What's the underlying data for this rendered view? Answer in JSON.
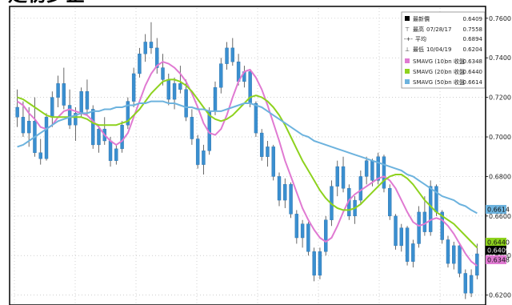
{
  "title": "走初步企",
  "chart_data": {
    "type": "line",
    "title": "走初步企",
    "xlabel": "",
    "ylabel": "",
    "ylim": [
      0.615,
      0.766
    ],
    "yticks": [
      0.62,
      0.64,
      0.66,
      0.68,
      0.7,
      0.72,
      0.74,
      0.76
    ],
    "ytick_labels": [
      "0.6200",
      "0.6400",
      "0.6600",
      "0.6800",
      "0.7000",
      "0.7200",
      "0.7400",
      "0.7600"
    ],
    "grid": true,
    "legend_position": "top-right",
    "legend": {
      "header": [
        {
          "icon": "black-square",
          "label": "最新價",
          "date": "",
          "value": "0.6409"
        },
        {
          "icon": "high-marker",
          "label": "最高",
          "date": "07/28/17",
          "value": "0.7558"
        },
        {
          "icon": "avg-marker",
          "label": "平均",
          "date": "",
          "value": "0.6894"
        },
        {
          "icon": "low-marker",
          "label": "最低",
          "date": "10/04/19",
          "value": "0.6204"
        }
      ],
      "series": [
        {
          "label": "SMAVG (10)",
          "basis": "on 收盤",
          "value": "0.6348",
          "color": "#e07ad2"
        },
        {
          "label": "SMAVG (20)",
          "basis": "on 收盤",
          "value": "0.6440",
          "color": "#8ed21e"
        },
        {
          "label": "SMAVG (50)",
          "basis": "on 收盤",
          "value": "0.6614",
          "color": "#6db3de"
        }
      ]
    },
    "price_badges": [
      {
        "value": "0.6614",
        "color": "#6db3de"
      },
      {
        "value": "0.6440",
        "color": "#8ed21e"
      },
      {
        "value": "0.6409",
        "color": "#000000"
      },
      {
        "value": "0.6348",
        "color": "#e07ad2"
      }
    ],
    "candle_color": "#3a8fd0",
    "candles": [
      [
        0.715,
        0.724,
        0.705,
        0.71
      ],
      [
        0.71,
        0.718,
        0.7,
        0.702
      ],
      [
        0.702,
        0.715,
        0.695,
        0.708
      ],
      [
        0.708,
        0.72,
        0.69,
        0.692
      ],
      [
        0.692,
        0.699,
        0.686,
        0.689
      ],
      [
        0.689,
        0.712,
        0.688,
        0.71
      ],
      [
        0.71,
        0.723,
        0.705,
        0.72
      ],
      [
        0.72,
        0.731,
        0.715,
        0.727
      ],
      [
        0.727,
        0.735,
        0.714,
        0.716
      ],
      [
        0.716,
        0.724,
        0.704,
        0.706
      ],
      [
        0.706,
        0.715,
        0.698,
        0.712
      ],
      [
        0.712,
        0.725,
        0.71,
        0.723
      ],
      [
        0.723,
        0.729,
        0.711,
        0.714
      ],
      [
        0.714,
        0.716,
        0.694,
        0.696
      ],
      [
        0.696,
        0.706,
        0.692,
        0.704
      ],
      [
        0.704,
        0.71,
        0.696,
        0.698
      ],
      [
        0.698,
        0.7,
        0.685,
        0.688
      ],
      [
        0.688,
        0.696,
        0.686,
        0.694
      ],
      [
        0.694,
        0.708,
        0.692,
        0.706
      ],
      [
        0.706,
        0.72,
        0.704,
        0.718
      ],
      [
        0.718,
        0.735,
        0.715,
        0.732
      ],
      [
        0.732,
        0.745,
        0.73,
        0.742
      ],
      [
        0.742,
        0.752,
        0.738,
        0.748
      ],
      [
        0.748,
        0.758,
        0.742,
        0.745
      ],
      [
        0.745,
        0.75,
        0.732,
        0.735
      ],
      [
        0.735,
        0.742,
        0.726,
        0.729
      ],
      [
        0.729,
        0.732,
        0.716,
        0.719
      ],
      [
        0.719,
        0.73,
        0.714,
        0.727
      ],
      [
        0.727,
        0.736,
        0.722,
        0.724
      ],
      [
        0.724,
        0.729,
        0.708,
        0.71
      ],
      [
        0.71,
        0.714,
        0.696,
        0.699
      ],
      [
        0.699,
        0.701,
        0.684,
        0.686
      ],
      [
        0.686,
        0.696,
        0.681,
        0.693
      ],
      [
        0.693,
        0.715,
        0.691,
        0.713
      ],
      [
        0.713,
        0.728,
        0.711,
        0.725
      ],
      [
        0.725,
        0.74,
        0.722,
        0.737
      ],
      [
        0.737,
        0.748,
        0.734,
        0.745
      ],
      [
        0.745,
        0.75,
        0.736,
        0.738
      ],
      [
        0.738,
        0.742,
        0.726,
        0.728
      ],
      [
        0.728,
        0.736,
        0.725,
        0.733
      ],
      [
        0.733,
        0.734,
        0.715,
        0.717
      ],
      [
        0.717,
        0.718,
        0.7,
        0.702
      ],
      [
        0.702,
        0.704,
        0.688,
        0.69
      ],
      [
        0.69,
        0.698,
        0.685,
        0.695
      ],
      [
        0.695,
        0.696,
        0.678,
        0.68
      ],
      [
        0.68,
        0.682,
        0.665,
        0.668
      ],
      [
        0.668,
        0.679,
        0.664,
        0.676
      ],
      [
        0.676,
        0.677,
        0.659,
        0.661
      ],
      [
        0.661,
        0.663,
        0.646,
        0.649
      ],
      [
        0.649,
        0.658,
        0.644,
        0.656
      ],
      [
        0.656,
        0.657,
        0.64,
        0.642
      ],
      [
        0.642,
        0.644,
        0.627,
        0.63
      ],
      [
        0.63,
        0.644,
        0.628,
        0.642
      ],
      [
        0.642,
        0.66,
        0.64,
        0.658
      ],
      [
        0.658,
        0.678,
        0.655,
        0.675
      ],
      [
        0.675,
        0.688,
        0.67,
        0.685
      ],
      [
        0.685,
        0.69,
        0.672,
        0.674
      ],
      [
        0.674,
        0.676,
        0.658,
        0.66
      ],
      [
        0.66,
        0.67,
        0.656,
        0.668
      ],
      [
        0.668,
        0.683,
        0.666,
        0.68
      ],
      [
        0.68,
        0.69,
        0.676,
        0.688
      ],
      [
        0.688,
        0.689,
        0.675,
        0.678
      ],
      [
        0.678,
        0.692,
        0.676,
        0.69
      ],
      [
        0.69,
        0.691,
        0.672,
        0.674
      ],
      [
        0.674,
        0.676,
        0.658,
        0.66
      ],
      [
        0.66,
        0.661,
        0.643,
        0.645
      ],
      [
        0.645,
        0.656,
        0.642,
        0.654
      ],
      [
        0.654,
        0.655,
        0.635,
        0.637
      ],
      [
        0.637,
        0.648,
        0.634,
        0.646
      ],
      [
        0.646,
        0.665,
        0.644,
        0.662
      ],
      [
        0.662,
        0.67,
        0.65,
        0.652
      ],
      [
        0.652,
        0.678,
        0.65,
        0.675
      ],
      [
        0.675,
        0.676,
        0.66,
        0.662
      ],
      [
        0.662,
        0.663,
        0.646,
        0.648
      ],
      [
        0.648,
        0.65,
        0.634,
        0.636
      ],
      [
        0.636,
        0.647,
        0.633,
        0.645
      ],
      [
        0.645,
        0.646,
        0.629,
        0.631
      ],
      [
        0.631,
        0.633,
        0.618,
        0.621
      ],
      [
        0.621,
        0.633,
        0.619,
        0.63
      ],
      [
        0.63,
        0.646,
        0.628,
        0.6409
      ]
    ],
    "series": [
      {
        "name": "SMAVG (10)",
        "color": "#e07ad2",
        "values": [
          0.718,
          0.716,
          0.712,
          0.709,
          0.705,
          0.704,
          0.706,
          0.71,
          0.713,
          0.714,
          0.713,
          0.712,
          0.711,
          0.708,
          0.705,
          0.701,
          0.698,
          0.696,
          0.698,
          0.702,
          0.71,
          0.718,
          0.726,
          0.732,
          0.736,
          0.738,
          0.737,
          0.735,
          0.732,
          0.728,
          0.722,
          0.715,
          0.707,
          0.702,
          0.701,
          0.704,
          0.711,
          0.72,
          0.728,
          0.733,
          0.734,
          0.73,
          0.724,
          0.716,
          0.707,
          0.698,
          0.688,
          0.68,
          0.672,
          0.664,
          0.658,
          0.653,
          0.649,
          0.647,
          0.649,
          0.655,
          0.662,
          0.668,
          0.671,
          0.673,
          0.675,
          0.677,
          0.679,
          0.68,
          0.678,
          0.674,
          0.668,
          0.662,
          0.657,
          0.655,
          0.656,
          0.658,
          0.659,
          0.658,
          0.655,
          0.651,
          0.646,
          0.641,
          0.637,
          0.6348
        ]
      },
      {
        "name": "SMAVG (20)",
        "color": "#8ed21e",
        "values": [
          0.72,
          0.719,
          0.717,
          0.715,
          0.713,
          0.711,
          0.71,
          0.71,
          0.71,
          0.71,
          0.71,
          0.71,
          0.709,
          0.707,
          0.706,
          0.706,
          0.706,
          0.706,
          0.707,
          0.708,
          0.711,
          0.714,
          0.718,
          0.722,
          0.725,
          0.728,
          0.729,
          0.729,
          0.728,
          0.726,
          0.723,
          0.719,
          0.715,
          0.711,
          0.709,
          0.708,
          0.709,
          0.711,
          0.714,
          0.717,
          0.72,
          0.721,
          0.72,
          0.718,
          0.715,
          0.711,
          0.706,
          0.7,
          0.694,
          0.688,
          0.683,
          0.678,
          0.673,
          0.669,
          0.666,
          0.664,
          0.663,
          0.663,
          0.664,
          0.666,
          0.669,
          0.672,
          0.675,
          0.678,
          0.68,
          0.681,
          0.681,
          0.679,
          0.676,
          0.672,
          0.668,
          0.665,
          0.662,
          0.66,
          0.658,
          0.656,
          0.653,
          0.65,
          0.647,
          0.644
        ]
      },
      {
        "name": "SMAVG (50)",
        "color": "#6db3de",
        "values": [
          0.695,
          0.696,
          0.698,
          0.7,
          0.702,
          0.704,
          0.706,
          0.708,
          0.709,
          0.71,
          0.711,
          0.712,
          0.712,
          0.713,
          0.713,
          0.714,
          0.714,
          0.715,
          0.715,
          0.716,
          0.716,
          0.717,
          0.717,
          0.718,
          0.718,
          0.718,
          0.717,
          0.717,
          0.716,
          0.715,
          0.715,
          0.714,
          0.714,
          0.713,
          0.713,
          0.713,
          0.714,
          0.715,
          0.716,
          0.717,
          0.717,
          0.716,
          0.715,
          0.713,
          0.711,
          0.709,
          0.707,
          0.705,
          0.703,
          0.701,
          0.7,
          0.698,
          0.697,
          0.696,
          0.695,
          0.694,
          0.693,
          0.692,
          0.691,
          0.69,
          0.689,
          0.688,
          0.687,
          0.686,
          0.685,
          0.684,
          0.683,
          0.681,
          0.68,
          0.678,
          0.676,
          0.674,
          0.672,
          0.67,
          0.669,
          0.668,
          0.666,
          0.665,
          0.663,
          0.6614
        ]
      }
    ]
  }
}
